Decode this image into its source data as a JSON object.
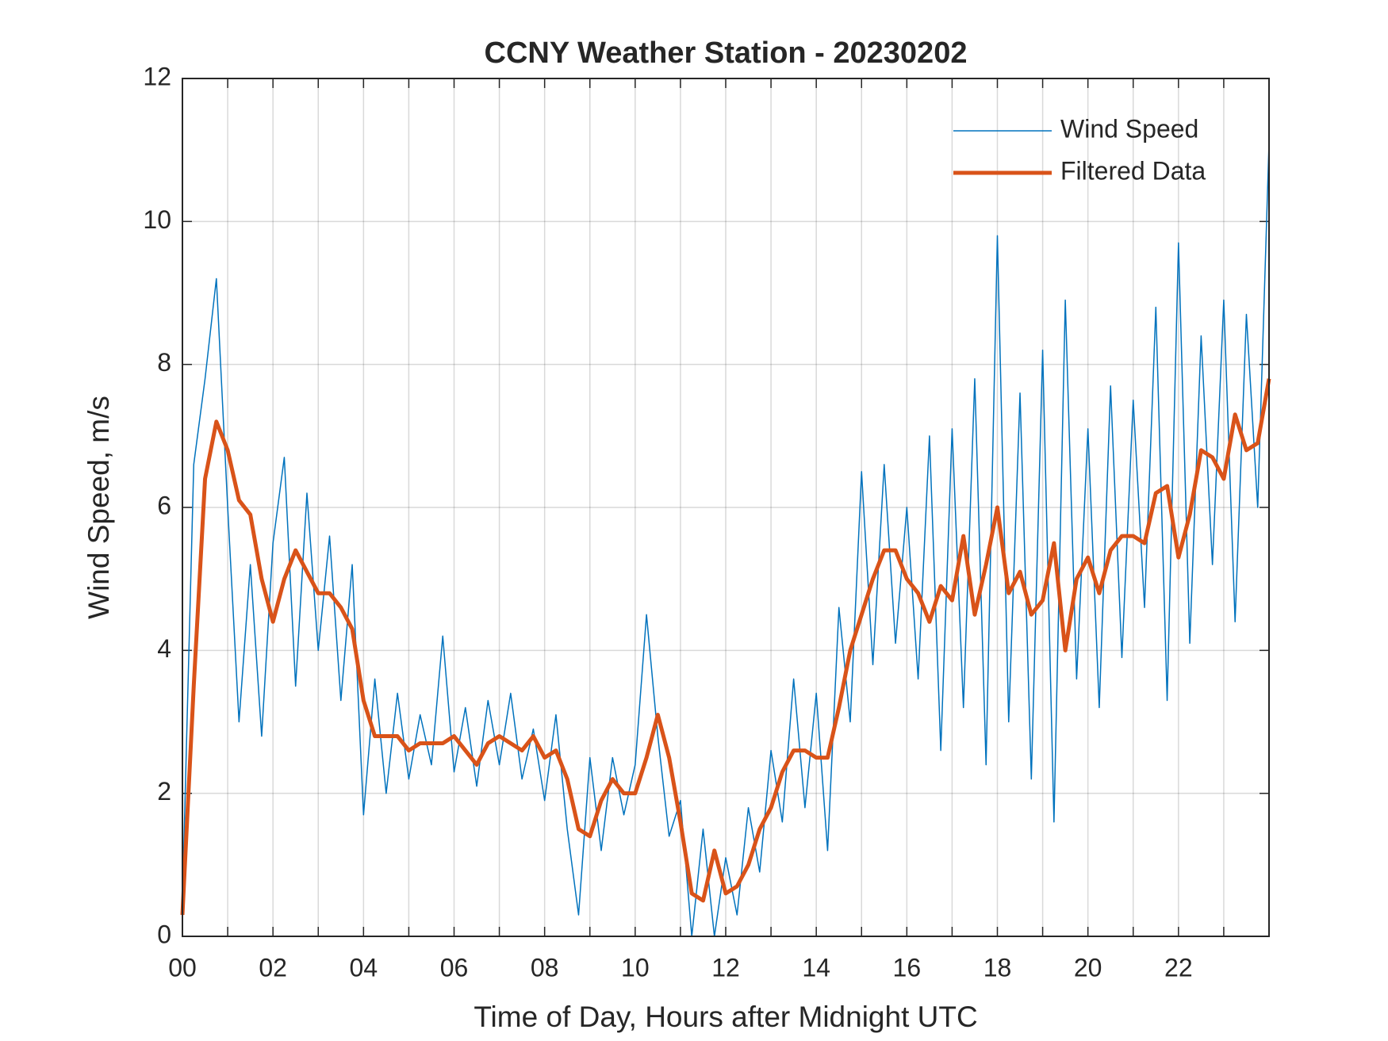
{
  "chart_data": {
    "type": "line",
    "title": "CCNY Weather Station - 20230202",
    "xlabel": "Time of Day, Hours after Midnight UTC",
    "ylabel": "Wind Speed, m/s",
    "x": [
      0,
      0.25,
      0.5,
      0.75,
      1,
      1.25,
      1.5,
      1.75,
      2,
      2.25,
      2.5,
      2.75,
      3,
      3.25,
      3.5,
      3.75,
      4,
      4.25,
      4.5,
      4.75,
      5,
      5.25,
      5.5,
      5.75,
      6,
      6.25,
      6.5,
      6.75,
      7,
      7.25,
      7.5,
      7.75,
      8,
      8.25,
      8.5,
      8.75,
      9,
      9.25,
      9.5,
      9.75,
      10,
      10.25,
      10.5,
      10.75,
      11,
      11.25,
      11.5,
      11.75,
      12,
      12.25,
      12.5,
      12.75,
      13,
      13.25,
      13.5,
      13.75,
      14,
      14.25,
      14.5,
      14.75,
      15,
      15.25,
      15.5,
      15.75,
      16,
      16.25,
      16.5,
      16.75,
      17,
      17.25,
      17.5,
      17.75,
      18,
      18.25,
      18.5,
      18.75,
      19,
      19.25,
      19.5,
      19.75,
      20,
      20.25,
      20.5,
      20.75,
      21,
      21.25,
      21.5,
      21.75,
      22,
      22.25,
      22.5,
      22.75,
      23,
      23.25,
      23.5,
      23.75,
      24
    ],
    "series": [
      {
        "name": "Wind Speed",
        "color": "#0072bd",
        "width": 1.5,
        "values": [
          0.5,
          6.6,
          7.8,
          9.2,
          6.0,
          3.0,
          5.2,
          2.8,
          5.5,
          6.7,
          3.5,
          6.2,
          4.0,
          5.6,
          3.3,
          5.2,
          1.7,
          3.6,
          2.0,
          3.4,
          2.2,
          3.1,
          2.4,
          4.2,
          2.3,
          3.2,
          2.1,
          3.3,
          2.4,
          3.4,
          2.2,
          2.9,
          1.9,
          3.1,
          1.5,
          0.3,
          2.5,
          1.2,
          2.5,
          1.7,
          2.4,
          4.5,
          2.8,
          1.4,
          1.9,
          0.0,
          1.5,
          0.0,
          1.1,
          0.3,
          1.8,
          0.9,
          2.6,
          1.6,
          3.6,
          1.8,
          3.4,
          1.2,
          4.6,
          3.0,
          6.5,
          3.8,
          6.6,
          4.1,
          6.0,
          3.6,
          7.0,
          2.6,
          7.1,
          3.2,
          7.8,
          2.4,
          9.8,
          3.0,
          7.6,
          2.2,
          8.2,
          1.6,
          8.9,
          3.6,
          7.1,
          3.2,
          7.7,
          3.9,
          7.5,
          4.6,
          8.8,
          3.3,
          9.7,
          4.1,
          8.4,
          5.2,
          8.9,
          4.4,
          8.7,
          6.0,
          11.1
        ]
      },
      {
        "name": "Filtered Data",
        "color": "#d95319",
        "width": 5,
        "values": [
          0.3,
          3.5,
          6.4,
          7.2,
          6.8,
          6.1,
          5.9,
          5.0,
          4.4,
          5.0,
          5.4,
          5.1,
          4.8,
          4.8,
          4.6,
          4.3,
          3.3,
          2.8,
          2.8,
          2.8,
          2.6,
          2.7,
          2.7,
          2.7,
          2.8,
          2.6,
          2.4,
          2.7,
          2.8,
          2.7,
          2.6,
          2.8,
          2.5,
          2.6,
          2.2,
          1.5,
          1.4,
          1.9,
          2.2,
          2.0,
          2.0,
          2.5,
          3.1,
          2.5,
          1.6,
          0.6,
          0.5,
          1.2,
          0.6,
          0.7,
          1.0,
          1.5,
          1.8,
          2.3,
          2.6,
          2.6,
          2.5,
          2.5,
          3.2,
          4.0,
          4.5,
          5.0,
          5.4,
          5.4,
          5.0,
          4.8,
          4.4,
          4.9,
          4.7,
          5.6,
          4.5,
          5.2,
          6.0,
          4.8,
          5.1,
          4.5,
          4.7,
          5.5,
          4.0,
          5.0,
          5.3,
          4.8,
          5.4,
          5.6,
          5.6,
          5.5,
          6.2,
          6.3,
          5.3,
          5.9,
          6.8,
          6.7,
          6.4,
          7.3,
          6.8,
          6.9,
          7.8
        ]
      }
    ],
    "xlim": [
      0,
      24
    ],
    "xticks": [
      {
        "value": 0,
        "label": "00"
      },
      {
        "value": 2,
        "label": "02"
      },
      {
        "value": 4,
        "label": "04"
      },
      {
        "value": 6,
        "label": "06"
      },
      {
        "value": 8,
        "label": "08"
      },
      {
        "value": 10,
        "label": "10"
      },
      {
        "value": 12,
        "label": "12"
      },
      {
        "value": 14,
        "label": "14"
      },
      {
        "value": 16,
        "label": "16"
      },
      {
        "value": 18,
        "label": "18"
      },
      {
        "value": 20,
        "label": "20"
      },
      {
        "value": 22,
        "label": "22"
      }
    ],
    "xminorticks": [
      1,
      3,
      5,
      7,
      9,
      11,
      13,
      15,
      17,
      19,
      21,
      23
    ],
    "ylim": [
      0,
      12
    ],
    "yticks": [
      0,
      2,
      4,
      6,
      8,
      10,
      12
    ],
    "grid": true,
    "legend": "upper right"
  }
}
